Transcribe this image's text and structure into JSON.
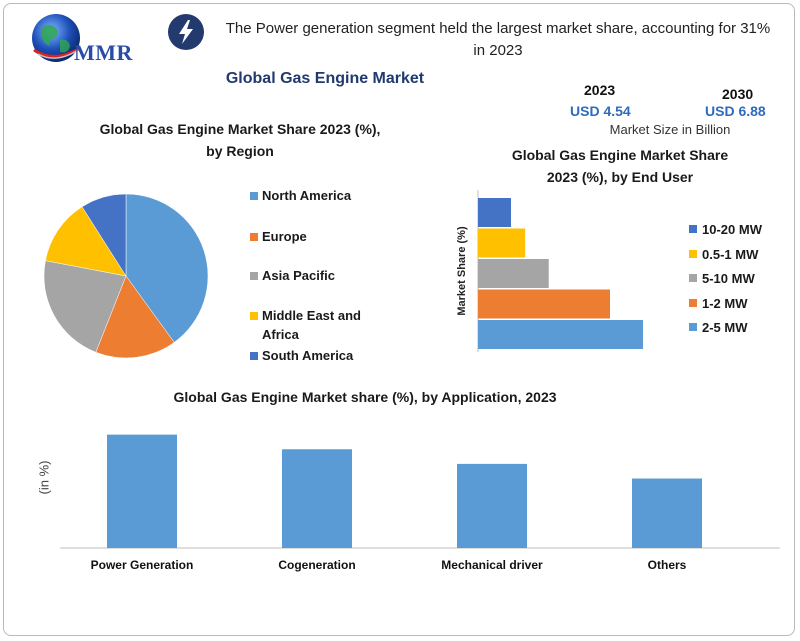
{
  "header": {
    "logo_text": "MMR",
    "headline": "The Power generation segment held the largest market share, accounting for 31% in 2023",
    "main_title": "Global Gas Engine Market"
  },
  "market_size": {
    "year_2023": "2023",
    "value_2023": "USD 4.54",
    "year_2030": "2030",
    "value_2030": "USD 6.88",
    "caption": "Market Size in Billion"
  },
  "colors": {
    "blue_light": "#5b9bd5",
    "orange": "#ed7d31",
    "gray": "#a5a5a5",
    "yellow": "#ffc000",
    "blue_dark": "#4472c4",
    "navy": "#203a70"
  },
  "icons": [
    "globe-logo-icon",
    "lightning-bolt-icon"
  ],
  "chart_data": [
    {
      "type": "pie",
      "title_line1": "Global Gas Engine Market Share 2023 (%),",
      "title_line2": "by Region",
      "categories": [
        "North America",
        "Europe",
        "Asia Pacific",
        "Middle East and Africa",
        "South America"
      ],
      "legend_lines": [
        [
          "North America"
        ],
        [
          "Europe"
        ],
        [
          "Asia Pacific"
        ],
        [
          "Middle East and",
          "Africa"
        ],
        [
          "South America"
        ]
      ],
      "values": [
        40,
        16,
        22,
        13,
        9
      ],
      "colors": [
        "#5b9bd5",
        "#ed7d31",
        "#a5a5a5",
        "#ffc000",
        "#4472c4"
      ],
      "legend_position": "right"
    },
    {
      "type": "bar",
      "orientation": "horizontal",
      "title_line1": "Global Gas Engine Market Share",
      "title_line2": "2023 (%), by End User",
      "ylabel": "Market Share (%)",
      "categories": [
        "2-5 MW",
        "1-2 MW",
        "5-10 MW",
        "0.5-1 MW",
        "10-20 MW"
      ],
      "values": [
        35,
        28,
        15,
        10,
        7
      ],
      "colors": [
        "#5b9bd5",
        "#ed7d31",
        "#a5a5a5",
        "#ffc000",
        "#4472c4"
      ],
      "legend_order": [
        "10-20 MW",
        "0.5-1 MW",
        "5-10 MW",
        "1-2 MW",
        "2-5 MW"
      ],
      "legend_colors": [
        "#4472c4",
        "#ffc000",
        "#a5a5a5",
        "#ed7d31",
        "#5b9bd5"
      ],
      "legend_position": "right"
    },
    {
      "type": "bar",
      "title": "Global Gas Engine Market share (%), by Application, 2023",
      "ylabel": "(in %)",
      "categories": [
        "Power Generation",
        "Cogeneration",
        "Mechanical driver",
        "Others"
      ],
      "values": [
        31,
        27,
        23,
        19
      ],
      "color": "#5b9bd5",
      "ylim": [
        0,
        35
      ]
    }
  ]
}
